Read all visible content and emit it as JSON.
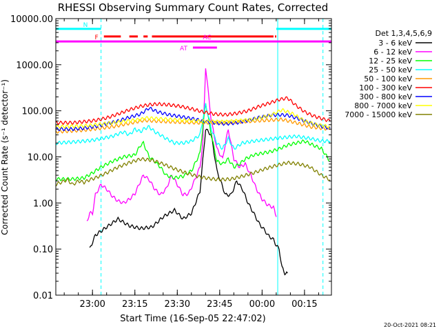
{
  "chart_data": {
    "type": "line",
    "title": "RHESSI Observing Summary Count Rates, Corrected",
    "xlabel": "Start Time (16-Sep-05 22:47:02)",
    "ylabel": "Corrected Count Rate (s⁻¹ detector⁻¹)",
    "yscale": "log",
    "ylim": [
      0.01,
      10000
    ],
    "xlim_minutes": [
      0,
      97.5
    ],
    "y_ticks": [
      {
        "value": 10000,
        "label": "10000.00"
      },
      {
        "value": 1000,
        "label": "1000.00"
      },
      {
        "value": 100,
        "label": "100.00"
      },
      {
        "value": 10,
        "label": "10.00"
      },
      {
        "value": 1,
        "label": "1.00"
      },
      {
        "value": 0.1,
        "label": "0.10"
      },
      {
        "value": 0.01,
        "label": "0.01"
      }
    ],
    "x_ticks": [
      {
        "minutes": 12.97,
        "label": "23:00"
      },
      {
        "minutes": 27.97,
        "label": "23:15"
      },
      {
        "minutes": 42.97,
        "label": "23:30"
      },
      {
        "minutes": 57.97,
        "label": "23:45"
      },
      {
        "minutes": 72.97,
        "label": "00:00"
      },
      {
        "minutes": 87.97,
        "label": "00:15"
      }
    ],
    "legend_title": "Det 1,3,4,5,6,9",
    "legend_position": "right",
    "series": [
      {
        "name": "3 - 6 keV",
        "color": "#000000",
        "x": [
          12,
          14,
          18,
          22,
          26,
          30,
          34,
          38,
          42,
          45,
          48,
          51,
          53,
          55,
          57,
          60,
          62,
          64,
          66,
          68,
          70,
          72,
          74,
          75,
          77,
          78,
          79,
          80,
          81,
          82
        ],
        "y": [
          0.1,
          0.2,
          0.3,
          0.45,
          0.32,
          0.28,
          0.3,
          0.5,
          0.7,
          0.45,
          0.6,
          1.8,
          40,
          30,
          5,
          1.5,
          1.5,
          3,
          2,
          1,
          0.6,
          0.35,
          0.25,
          0.2,
          0.16,
          0.12,
          0.1,
          0.04,
          0.03,
          0.03
        ]
      },
      {
        "name": "6 - 12 keV",
        "color": "#ff00ff",
        "x": [
          11,
          12,
          13,
          14,
          16,
          18,
          20,
          22,
          24,
          26,
          28,
          30,
          31,
          33,
          35,
          37,
          39,
          41,
          43,
          45,
          47,
          49,
          51,
          52,
          53,
          55,
          57,
          59,
          60,
          61,
          63,
          65,
          67,
          69,
          71,
          73,
          75,
          77,
          78
        ],
        "y": [
          0.4,
          0.6,
          0.6,
          1.5,
          2.5,
          2.0,
          1.4,
          1.1,
          1.0,
          1.2,
          1.6,
          3.0,
          4.0,
          3.2,
          2.0,
          1.5,
          2.0,
          4.0,
          2.5,
          1.5,
          1.6,
          3.0,
          6,
          20,
          900,
          60,
          15,
          9,
          20,
          40,
          9,
          6,
          7,
          4,
          2,
          1.2,
          0.9,
          0.8,
          0.5
        ]
      },
      {
        "name": "12 - 25 keV",
        "color": "#00ff00",
        "x": [
          0,
          6,
          10,
          13,
          16,
          20,
          24,
          28,
          30,
          31,
          33,
          35,
          37,
          39,
          42,
          45,
          48,
          51,
          53,
          55,
          57,
          59,
          61,
          63,
          65,
          67,
          70,
          73,
          76,
          79,
          82,
          85,
          88,
          91,
          94,
          97
        ],
        "y": [
          3.3,
          3.3,
          3.5,
          4.5,
          6.0,
          8.0,
          10.0,
          11.0,
          18,
          20,
          10,
          8,
          6,
          4,
          3.5,
          3.8,
          5,
          12,
          150,
          30,
          8,
          7,
          9,
          6,
          7,
          9,
          11,
          12,
          13,
          15,
          18,
          20,
          22,
          18,
          15,
          8
        ]
      },
      {
        "name": "25 - 50 keV",
        "color": "#00ffff",
        "x": [
          0,
          6,
          10,
          13,
          16,
          20,
          24,
          26,
          28,
          30,
          31,
          33,
          35,
          37,
          39,
          42,
          45,
          48,
          51,
          53,
          55,
          57,
          59,
          61,
          63,
          66,
          70,
          75,
          80,
          85,
          90,
          94,
          97
        ],
        "y": [
          20,
          21,
          22,
          23,
          25,
          28,
          35,
          30,
          40,
          35,
          40,
          45,
          35,
          30,
          25,
          20,
          20,
          22,
          30,
          140,
          40,
          20,
          15,
          25,
          15,
          20,
          22,
          24,
          26,
          28,
          25,
          22,
          22
        ]
      },
      {
        "name": "50 - 100 keV",
        "color": "#ff9900",
        "x": [
          0,
          10,
          20,
          30,
          31,
          40,
          50,
          60,
          70,
          80,
          85,
          90,
          97
        ],
        "y": [
          35,
          38,
          45,
          60,
          62,
          58,
          55,
          55,
          60,
          65,
          55,
          45,
          40
        ]
      },
      {
        "name": "100 - 300 keV",
        "color": "#ff0000",
        "x": [
          0,
          6,
          10,
          14,
          18,
          22,
          26,
          30,
          33,
          36,
          40,
          44,
          48,
          52,
          56,
          60,
          64,
          68,
          72,
          76,
          79,
          82,
          85,
          88,
          91,
          94,
          97
        ],
        "y": [
          55,
          55,
          58,
          62,
          70,
          85,
          105,
          125,
          135,
          140,
          135,
          125,
          110,
          95,
          85,
          82,
          88,
          100,
          125,
          150,
          175,
          190,
          130,
          95,
          78,
          68,
          60
        ]
      },
      {
        "name": "300 - 800 keV",
        "color": "#0000ff",
        "x": [
          0,
          6,
          10,
          14,
          18,
          22,
          26,
          30,
          33,
          36,
          40,
          44,
          48,
          52,
          56,
          60,
          64,
          68,
          72,
          76,
          79,
          82,
          85,
          88,
          91,
          94,
          97
        ],
        "y": [
          40,
          40,
          42,
          46,
          52,
          60,
          72,
          85,
          115,
          95,
          82,
          75,
          68,
          60,
          55,
          52,
          55,
          62,
          72,
          80,
          82,
          80,
          70,
          60,
          52,
          46,
          42
        ]
      },
      {
        "name": "800 - 7000 keV",
        "color": "#ffff00",
        "x": [
          0,
          10,
          20,
          30,
          32,
          40,
          50,
          60,
          70,
          76,
          80,
          84,
          88,
          92,
          97
        ],
        "y": [
          45,
          47,
          55,
          65,
          70,
          65,
          60,
          58,
          65,
          80,
          105,
          85,
          60,
          50,
          45
        ]
      },
      {
        "name": "7000 - 15000 keV",
        "color": "#808000",
        "x": [
          0,
          4,
          6,
          8,
          10,
          12,
          14,
          18,
          22,
          26,
          30,
          34,
          38,
          42,
          46,
          50,
          54,
          58,
          62,
          66,
          70,
          74,
          78,
          82,
          86,
          90,
          94,
          97
        ],
        "y": [
          2.5,
          3.2,
          2.5,
          3.0,
          2.8,
          3.2,
          3.5,
          4.5,
          6.0,
          7.5,
          9.0,
          8.5,
          7.0,
          5.5,
          4.5,
          3.8,
          3.4,
          3.2,
          3.3,
          3.8,
          4.5,
          5.5,
          6.5,
          7.5,
          7.0,
          6.0,
          4.0,
          3.2
        ]
      }
    ],
    "flag_bars": [
      {
        "label": "N",
        "color": "#00ffff",
        "y_value": 6000,
        "segments": [
          [
            0,
            16
          ],
          [
            78,
            97.5
          ]
        ]
      },
      {
        "label": "F",
        "color": "#ff0000",
        "y_value": 4100,
        "segments": [
          [
            17,
            23
          ],
          [
            26,
            29
          ],
          [
            31,
            32.5
          ],
          [
            34,
            77
          ],
          [
            77.5,
            78
          ]
        ]
      },
      {
        "label": "AC",
        "color": "#ff00ff",
        "y_value": 3200,
        "segments": [
          [
            0,
            97.5
          ]
        ]
      },
      {
        "label": "AT",
        "color": "#ff00ff",
        "y_value": 2350,
        "segments": [
          [
            48.5,
            57
          ]
        ]
      }
    ],
    "vertical_markers": [
      {
        "minutes": 0,
        "color": "#00ffff",
        "style": "solid"
      },
      {
        "minutes": 16,
        "color": "#00ffff",
        "style": "dashed"
      },
      {
        "minutes": 78.5,
        "color": "#00ffff",
        "style": "solid"
      },
      {
        "minutes": 94.5,
        "color": "#00ffff",
        "style": "dashed"
      }
    ],
    "footer_date": "20-Oct-2021 08:21"
  }
}
